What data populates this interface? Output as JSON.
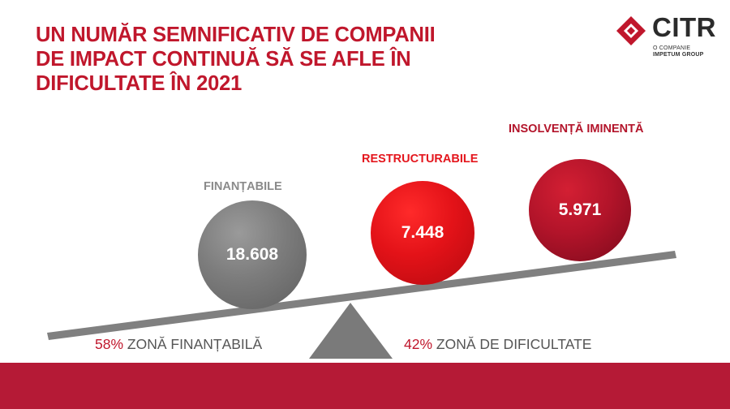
{
  "title": {
    "line1": "UN NUMĂR SEMNIFICATIV DE COMPANII",
    "line2": "DE IMPACT CONTINUĂ SĂ SE AFLE ÎN",
    "line3": "DIFICULTATE ÎN 2021"
  },
  "logo": {
    "name": "CITR",
    "sub1": "O COMPANIE",
    "sub2": "IMPETUM GROUP",
    "icon": "diamond-logo-icon"
  },
  "groups": [
    {
      "label": "FINANȚABILE",
      "value": "18.608",
      "color": "#7c7c7c"
    },
    {
      "label": "RESTRUCTURABILE",
      "value": "7.448",
      "color": "#e31218"
    },
    {
      "label": "INSOLVENȚĂ IMINENTĂ",
      "value": "5.971",
      "color": "#b3142a"
    }
  ],
  "captions": {
    "left_pct": "58%",
    "left_text": "ZONĂ FINANȚABILĂ",
    "right_pct": "42%",
    "right_text": "ZONĂ DE DIFICULTATE"
  },
  "colors": {
    "accent": "#c0172c",
    "footer": "#b51a36",
    "beam": "#808080"
  }
}
